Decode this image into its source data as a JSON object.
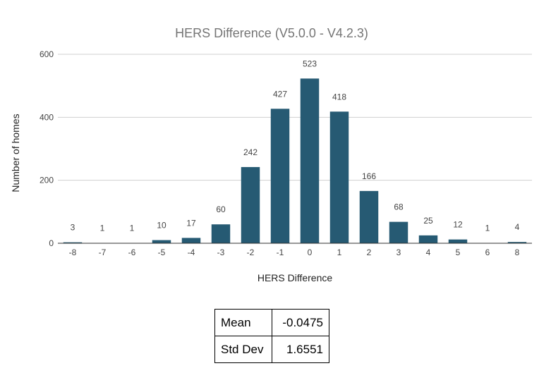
{
  "chart_data": {
    "type": "bar",
    "title": "HERS Difference (V5.0.0 - V4.2.3)",
    "xlabel": "HERS Difference",
    "ylabel": "Number of homes",
    "categories": [
      "-8",
      "-7",
      "-6",
      "-5",
      "-4",
      "-3",
      "-2",
      "-1",
      "0",
      "1",
      "2",
      "3",
      "4",
      "5",
      "6",
      "8"
    ],
    "values": [
      3,
      1,
      1,
      10,
      17,
      60,
      242,
      427,
      523,
      418,
      166,
      68,
      25,
      12,
      1,
      4
    ],
    "ylim": [
      0,
      600
    ],
    "yticks": [
      0,
      200,
      400,
      600
    ],
    "grid": true,
    "bar_color": "#265a73",
    "data_labels": true
  },
  "stats": [
    {
      "label": "Mean",
      "value": "-0.0475"
    },
    {
      "label": "Std Dev",
      "value": "1.6551"
    }
  ]
}
